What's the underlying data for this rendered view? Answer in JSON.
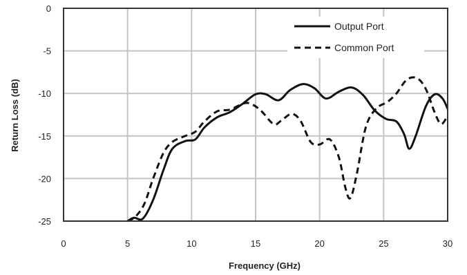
{
  "chart_data": {
    "type": "line",
    "xlabel": "Frequency (GHz)",
    "ylabel": "Return Loss (dB)",
    "xlim": [
      0,
      30
    ],
    "ylim": [
      -25,
      0
    ],
    "xticks": [
      0,
      5,
      10,
      15,
      20,
      25,
      30
    ],
    "yticks": [
      0,
      -5,
      -10,
      -15,
      -20,
      -25
    ],
    "xtick_labels": [
      "0",
      "5",
      "10",
      "15",
      "20",
      "25",
      "30"
    ],
    "ytick_labels": [
      "0",
      "-5",
      "-10",
      "-15",
      "-20",
      "-25"
    ],
    "grid": true,
    "legend_position": "top-right",
    "series": [
      {
        "name": "Output Port",
        "style": "solid",
        "color": "#111111",
        "points": [
          [
            5.0,
            -25.0
          ],
          [
            5.5,
            -24.6
          ],
          [
            6.2,
            -24.7
          ],
          [
            7.0,
            -22.5
          ],
          [
            7.8,
            -19.0
          ],
          [
            8.5,
            -16.5
          ],
          [
            9.5,
            -15.6
          ],
          [
            10.3,
            -15.4
          ],
          [
            11.0,
            -14.0
          ],
          [
            12.0,
            -12.8
          ],
          [
            13.0,
            -12.2
          ],
          [
            14.0,
            -11.2
          ],
          [
            15.0,
            -10.1
          ],
          [
            15.8,
            -10.1
          ],
          [
            16.8,
            -10.8
          ],
          [
            17.7,
            -9.6
          ],
          [
            18.7,
            -8.9
          ],
          [
            19.6,
            -9.4
          ],
          [
            20.5,
            -10.6
          ],
          [
            21.5,
            -9.8
          ],
          [
            22.5,
            -9.3
          ],
          [
            23.4,
            -10.2
          ],
          [
            24.3,
            -12.0
          ],
          [
            25.2,
            -13.0
          ],
          [
            26.0,
            -13.3
          ],
          [
            26.6,
            -14.8
          ],
          [
            27.0,
            -16.5
          ],
          [
            27.5,
            -15.0
          ],
          [
            28.3,
            -11.5
          ],
          [
            29.0,
            -10.1
          ],
          [
            29.6,
            -10.6
          ],
          [
            30.0,
            -11.8
          ]
        ]
      },
      {
        "name": "Common Port",
        "style": "dashed",
        "color": "#111111",
        "points": [
          [
            5.0,
            -25.0
          ],
          [
            5.6,
            -24.5
          ],
          [
            6.3,
            -23.0
          ],
          [
            7.0,
            -20.0
          ],
          [
            7.8,
            -17.0
          ],
          [
            8.5,
            -15.7
          ],
          [
            9.5,
            -15.0
          ],
          [
            10.3,
            -14.5
          ],
          [
            11.0,
            -13.3
          ],
          [
            12.0,
            -12.1
          ],
          [
            13.0,
            -11.9
          ],
          [
            14.0,
            -11.2
          ],
          [
            14.6,
            -11.2
          ],
          [
            15.4,
            -12.0
          ],
          [
            16.4,
            -13.6
          ],
          [
            17.0,
            -13.2
          ],
          [
            17.8,
            -12.4
          ],
          [
            18.5,
            -13.2
          ],
          [
            19.3,
            -15.7
          ],
          [
            20.0,
            -16.0
          ],
          [
            20.8,
            -15.4
          ],
          [
            21.5,
            -17.5
          ],
          [
            22.0,
            -21.0
          ],
          [
            22.4,
            -22.3
          ],
          [
            22.9,
            -19.5
          ],
          [
            23.6,
            -14.0
          ],
          [
            24.4,
            -11.8
          ],
          [
            25.3,
            -11.0
          ],
          [
            26.0,
            -10.0
          ],
          [
            26.8,
            -8.4
          ],
          [
            27.6,
            -8.2
          ],
          [
            28.3,
            -9.5
          ],
          [
            29.0,
            -12.3
          ],
          [
            29.5,
            -13.6
          ],
          [
            30.0,
            -12.6
          ]
        ]
      }
    ]
  }
}
